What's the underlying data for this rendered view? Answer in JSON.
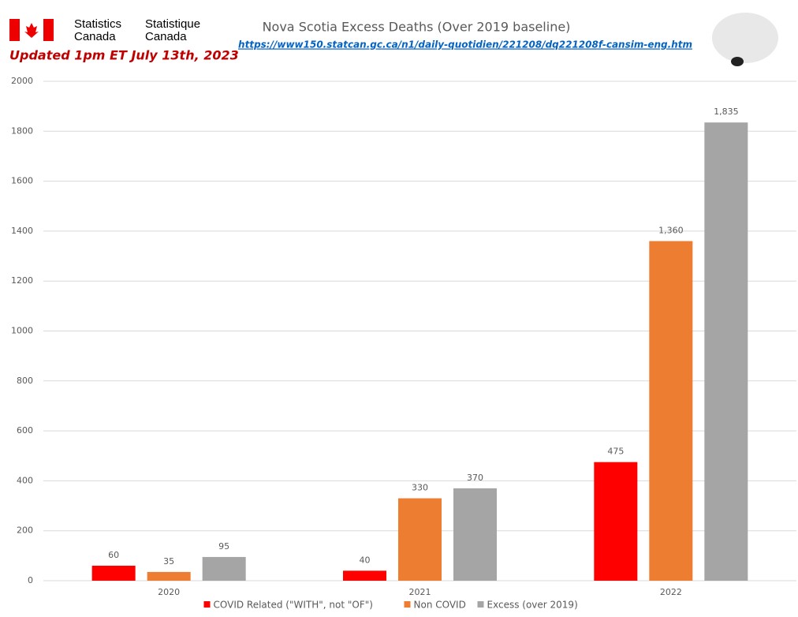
{
  "chart_data": {
    "type": "bar",
    "title": "Nova Scotia Excess Deaths (Over 2019 baseline)",
    "subtitle": "https://www150.statcan.gc.ca/n1/daily-quotidien/221208/dq221208f-cansim-eng.htm",
    "annotations": [
      "Statistics",
      "Canada",
      "Statistique",
      "Canada",
      "Updated 1pm ET July 13th, 2023"
    ],
    "categories": [
      "2020",
      "2021",
      "2022"
    ],
    "series": [
      {
        "name": "COVID Related (\"WITH\", not \"OF\")",
        "color": "#ff0000",
        "values": [
          60,
          40,
          475
        ],
        "value_labels": [
          "60",
          "40",
          "475"
        ]
      },
      {
        "name": "Non COVID",
        "color": "#ed7d31",
        "values": [
          35,
          330,
          1360
        ],
        "value_labels": [
          "35",
          "330",
          "1,360"
        ]
      },
      {
        "name": "Excess (over 2019)",
        "color": "#a5a5a5",
        "values": [
          95,
          370,
          1835
        ],
        "value_labels": [
          "95",
          "370",
          "1,835"
        ]
      }
    ],
    "ylim": [
      0,
      2000
    ],
    "yticks": [
      0,
      200,
      400,
      600,
      800,
      1000,
      1200,
      1400,
      1600,
      1800,
      2000
    ],
    "grid": true,
    "legend": "bottom"
  }
}
